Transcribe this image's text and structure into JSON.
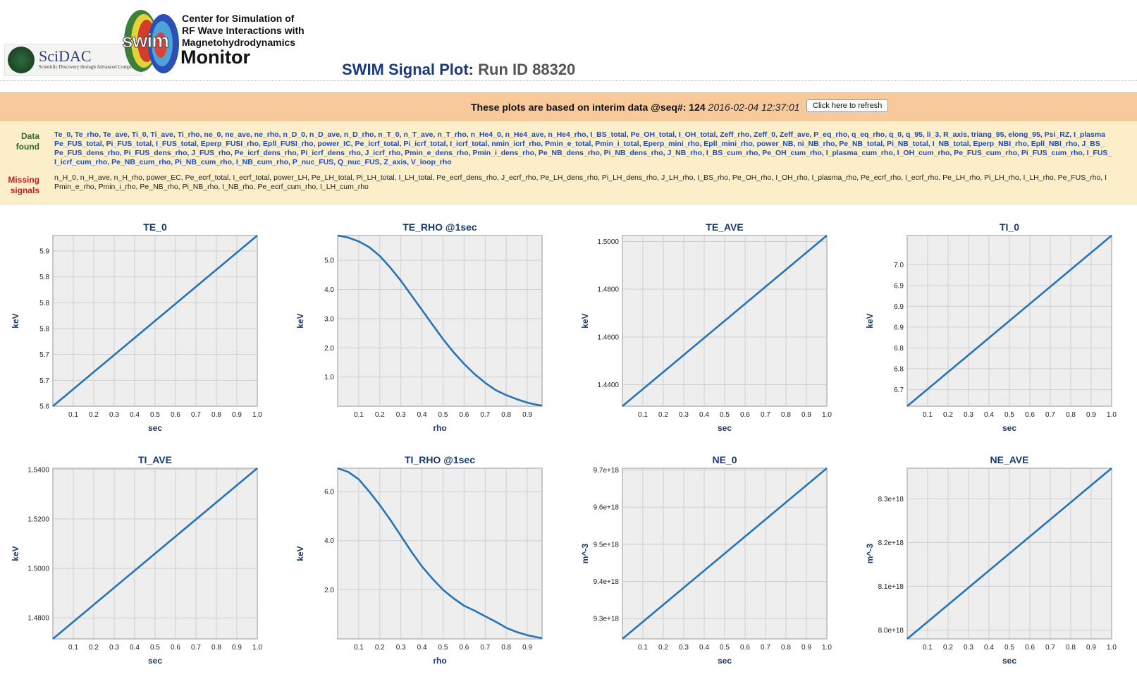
{
  "header": {
    "scidac_name": "SciDAC",
    "scidac_tagline": "Scientific Discovery through Advanced Computing",
    "swim_logo_text": "swim",
    "center_line1": "Center for Simulation of",
    "center_line2": "RF Wave Interactions with",
    "center_line3": "Magnetohydrodynamics",
    "monitor_label": "Monitor",
    "page_title": "SWIM Signal Plot:",
    "run_id": "Run ID 88320"
  },
  "banner": {
    "text": "These plots are based on interim data @seq#:",
    "seq": "124",
    "timestamp": "2016-02-04 12:37:01",
    "refresh_label": "Click here to refresh"
  },
  "signals": {
    "found_label_1": "Data",
    "found_label_2": "found",
    "missing_label_1": "Missing",
    "missing_label_2": "signals",
    "found_line1": "Te_0, Te_rho, Te_ave, Ti_0, Ti_ave, Ti_rho, ne_0, ne_ave, ne_rho, n_D_0, n_D_ave, n_D_rho, n_T_0, n_T_ave, n_T_rho, n_He4_0, n_He4_ave, n_He4_rho, I_BS_total, Pe_OH_total, I_OH_total, Zeff_rho, Zeff_0, Zeff_ave, P_eq_rho, q_eq_rho, q_0, q_95, li_3, R_axis, triang_95, elong_95, Psi_RZ, I_plasma",
    "found_line2": "Pe_FUS_total, Pi_FUS_total, I_FUS_total, Eperp_FUSI_rho, Epll_FUSI_rho, power_IC, Pe_icrf_total, Pi_icrf_total, I_icrf_total, nmin_icrf_rho, Pmin_e_total, Pmin_i_total, Eperp_mini_rho, Epll_mini_rho, power_NB, ni_NB_rho, Pe_NB_total, Pi_NB_total, I_NB_total, Eperp_NBI_rho, Epll_NBI_rho, J_BS_",
    "found_line3": "Pe_FUS_dens_rho, Pi_FUS_dens_rho, J_FUS_rho, Pe_icrf_dens_rho, Pi_icrf_dens_rho, J_icrf_rho, Pmin_e_dens_rho, Pmin_i_dens_rho, Pe_NB_dens_rho, Pi_NB_dens_rho, J_NB_rho, I_BS_cum_rho, Pe_OH_cum_rho, I_plasma_cum_rho, I_OH_cum_rho, Pe_FUS_cum_rho, Pi_FUS_cum_rho, I_FUS_",
    "found_line4": "I_icrf_cum_rho, Pe_NB_cum_rho, Pi_NB_cum_rho, I_NB_cum_rho, P_nuc_FUS, Q_nuc_FUS, Z_axis, V_loop_rho",
    "missing_line1": "n_H_0, n_H_ave, n_H_rho, power_EC, Pe_ecrf_total, I_ecrf_total, power_LH, Pe_LH_total, Pi_LH_total, I_LH_total, Pe_ecrf_dens_rho, J_ecrf_rho, Pe_LH_dens_rho, Pi_LH_dens_rho, J_LH_rho, I_BS_rho, Pe_OH_rho, I_OH_rho, I_plasma_rho, Pe_ecrf_rho, I_ecrf_rho, Pe_LH_rho, Pi_LH_rho, I_LH_rho, Pe_FUS_rho, I",
    "missing_line2": "Pmin_e_rho, Pmin_i_rho, Pe_NB_rho, Pi_NB_rho, I_NB_rho, Pe_ecrf_cum_rho, I_LH_cum_rho"
  },
  "colors": {
    "line": "#2674b5",
    "plot_bg": "#eeeeee",
    "grid": "#cfcfcf",
    "title": "#1a3a6a",
    "banner": "#f8c99a",
    "signals_bg": "#fbeec8"
  },
  "chart_data": [
    {
      "type": "line",
      "title": "TE_0",
      "xlabel": "sec",
      "ylabel": "keV",
      "xticks": [
        "0.1",
        "0.2",
        "0.3",
        "0.4",
        "0.5",
        "0.6",
        "0.7",
        "0.8",
        "0.9",
        "1.0"
      ],
      "yticks": [
        5.6,
        5.65,
        5.7,
        5.75,
        5.8,
        5.85,
        5.9
      ],
      "ytick_labels": [
        "5.6",
        "5.7",
        "5.7",
        "5.8",
        "5.8",
        "5.8",
        "5.9"
      ],
      "xlim": [
        0,
        1
      ],
      "ylim": [
        5.6,
        5.93
      ],
      "x": [
        0,
        1
      ],
      "y": [
        5.6,
        5.93
      ]
    },
    {
      "type": "line",
      "title": "TE_RHO @1sec",
      "xlabel": "rho",
      "ylabel": "keV",
      "xticks": [
        "0.1",
        "0.2",
        "0.3",
        "0.4",
        "0.5",
        "0.6",
        "0.7",
        "0.8",
        "0.9"
      ],
      "yticks": [
        1,
        2,
        3,
        4,
        5
      ],
      "ytick_labels": [
        "1.0",
        "2.0",
        "3.0",
        "4.0",
        "5.0"
      ],
      "xlim": [
        0,
        0.97
      ],
      "ylim": [
        0,
        5.85
      ],
      "x": [
        0,
        0.05,
        0.1,
        0.15,
        0.2,
        0.25,
        0.3,
        0.35,
        0.4,
        0.45,
        0.5,
        0.55,
        0.6,
        0.65,
        0.7,
        0.75,
        0.8,
        0.85,
        0.9,
        0.95,
        0.97
      ],
      "y": [
        5.85,
        5.78,
        5.65,
        5.45,
        5.15,
        4.75,
        4.3,
        3.8,
        3.3,
        2.8,
        2.3,
        1.85,
        1.45,
        1.1,
        0.8,
        0.55,
        0.38,
        0.24,
        0.12,
        0.04,
        0.02
      ]
    },
    {
      "type": "line",
      "title": "TE_AVE",
      "xlabel": "sec",
      "ylabel": "keV",
      "xticks": [
        "0.1",
        "0.2",
        "0.3",
        "0.4",
        "0.5",
        "0.6",
        "0.7",
        "0.8",
        "0.9",
        "1.0"
      ],
      "yticks": [
        1.44,
        1.46,
        1.48,
        1.5
      ],
      "ytick_labels": [
        "1.4400",
        "1.4600",
        "1.4800",
        "1.5000"
      ],
      "xlim": [
        0,
        1
      ],
      "ylim": [
        1.431,
        1.5025
      ],
      "x": [
        0,
        1
      ],
      "y": [
        1.431,
        1.5025
      ]
    },
    {
      "type": "line",
      "title": "TI_0",
      "xlabel": "sec",
      "ylabel": "keV",
      "xticks": [
        "0.1",
        "0.2",
        "0.3",
        "0.4",
        "0.5",
        "0.6",
        "0.7",
        "0.8",
        "0.9",
        "1.0"
      ],
      "yticks": [
        6.7,
        6.75,
        6.8,
        6.85,
        6.9,
        6.95,
        7.0
      ],
      "ytick_labels": [
        "6.7",
        "6.8",
        "6.8",
        "6.9",
        "6.9",
        "6.9",
        "7.0"
      ],
      "xlim": [
        0,
        1
      ],
      "ylim": [
        6.66,
        7.07
      ],
      "x": [
        0,
        1
      ],
      "y": [
        6.66,
        7.07
      ]
    },
    {
      "type": "line",
      "title": "TI_AVE",
      "xlabel": "sec",
      "ylabel": "keV",
      "xticks": [
        "0.1",
        "0.2",
        "0.3",
        "0.4",
        "0.5",
        "0.6",
        "0.7",
        "0.8",
        "0.9",
        "1.0"
      ],
      "yticks": [
        1.48,
        1.5,
        1.52,
        1.54
      ],
      "ytick_labels": [
        "1.4800",
        "1.5000",
        "1.5200",
        "1.5400"
      ],
      "xlim": [
        0,
        1
      ],
      "ylim": [
        1.4715,
        1.5405
      ],
      "x": [
        0,
        1
      ],
      "y": [
        1.4715,
        1.5405
      ]
    },
    {
      "type": "line",
      "title": "TI_RHO @1sec",
      "xlabel": "rho",
      "ylabel": "keV",
      "xticks": [
        "0.1",
        "0.2",
        "0.3",
        "0.4",
        "0.5",
        "0.6",
        "0.7",
        "0.8",
        "0.9"
      ],
      "yticks": [
        2,
        4,
        6
      ],
      "ytick_labels": [
        "2.0",
        "4.0",
        "6.0"
      ],
      "xlim": [
        0,
        0.97
      ],
      "ylim": [
        0,
        6.95
      ],
      "x": [
        0,
        0.05,
        0.1,
        0.15,
        0.2,
        0.25,
        0.3,
        0.35,
        0.4,
        0.45,
        0.5,
        0.55,
        0.6,
        0.65,
        0.7,
        0.75,
        0.8,
        0.85,
        0.9,
        0.95,
        0.97
      ],
      "y": [
        6.95,
        6.8,
        6.5,
        6.0,
        5.45,
        4.85,
        4.2,
        3.55,
        2.95,
        2.45,
        2.0,
        1.65,
        1.35,
        1.15,
        0.92,
        0.7,
        0.45,
        0.28,
        0.15,
        0.06,
        0.03
      ]
    },
    {
      "type": "line",
      "title": "NE_0",
      "xlabel": "sec",
      "ylabel": "m^-3",
      "xticks": [
        "0.1",
        "0.2",
        "0.3",
        "0.4",
        "0.5",
        "0.6",
        "0.7",
        "0.8",
        "0.9",
        "1.0"
      ],
      "yticks": [
        9.3e+18,
        9.4e+18,
        9.5e+18,
        9.6e+18,
        9.7e+18
      ],
      "ytick_labels": [
        "9.3e+18",
        "9.4e+18",
        "9.5e+18",
        "9.6e+18",
        "9.7e+18"
      ],
      "xlim": [
        0,
        1
      ],
      "ylim": [
        9.245e+18,
        9.705e+18
      ],
      "x": [
        0,
        1
      ],
      "y": [
        9.245e+18,
        9.705e+18
      ]
    },
    {
      "type": "line",
      "title": "NE_AVE",
      "xlabel": "sec",
      "ylabel": "m^-3",
      "xticks": [
        "0.1",
        "0.2",
        "0.3",
        "0.4",
        "0.5",
        "0.6",
        "0.7",
        "0.8",
        "0.9",
        "1.0"
      ],
      "yticks": [
        8e+18,
        8.1e+18,
        8.2e+18,
        8.3e+18
      ],
      "ytick_labels": [
        "8.0e+18",
        "8.1e+18",
        "8.2e+18",
        "8.3e+18"
      ],
      "xlim": [
        0,
        1
      ],
      "ylim": [
        7.98e+18,
        8.37e+18
      ],
      "x": [
        0,
        1
      ],
      "y": [
        7.98e+18,
        8.37e+18
      ]
    }
  ]
}
